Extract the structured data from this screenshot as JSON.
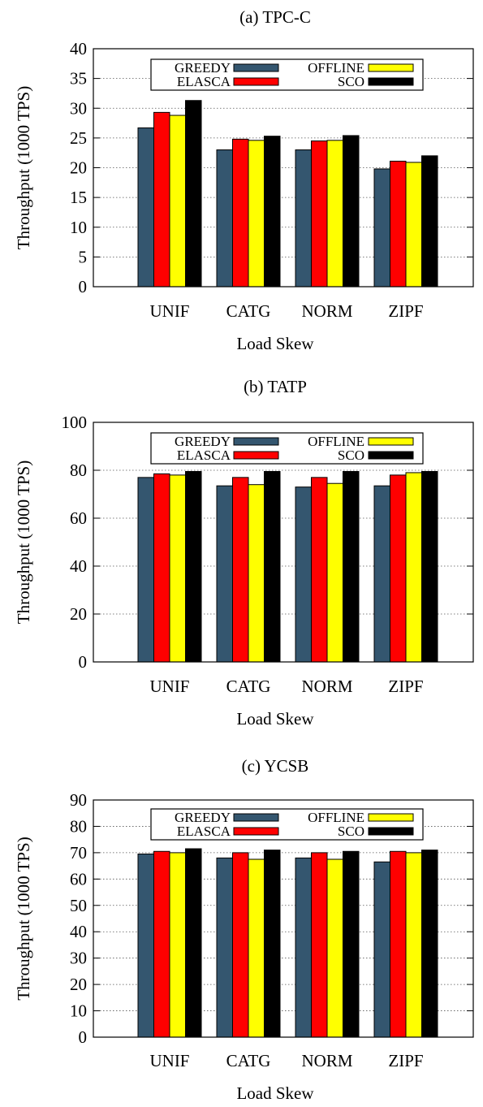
{
  "legend_colors": {
    "GREEDY": "#34566f",
    "ELASCA": "#ff0000",
    "OFFLINE": "#ffff00",
    "SCO": "#000000"
  },
  "chart_data": [
    {
      "type": "bar",
      "title": "(a) TPC-C",
      "xlabel": "Load Skew",
      "ylabel": "Throughput (1000 TPS)",
      "ylim": [
        0,
        40
      ],
      "yticks": [
        0,
        5,
        10,
        15,
        20,
        25,
        30,
        35,
        40
      ],
      "grid": "horizontal dotted",
      "legend_position": "top",
      "categories": [
        "UNIF",
        "CATG",
        "NORM",
        "ZIPF"
      ],
      "series": [
        {
          "name": "GREEDY",
          "values": [
            26.7,
            23.0,
            23.0,
            19.8
          ]
        },
        {
          "name": "ELASCA",
          "values": [
            29.3,
            24.8,
            24.5,
            21.1
          ]
        },
        {
          "name": "OFFLINE",
          "values": [
            28.8,
            24.6,
            24.6,
            20.9
          ]
        },
        {
          "name": "SCO",
          "values": [
            31.3,
            25.3,
            25.4,
            22.0
          ]
        }
      ]
    },
    {
      "type": "bar",
      "title": "(b) TATP",
      "xlabel": "Load Skew",
      "ylabel": "Throughput (1000 TPS)",
      "ylim": [
        0,
        100
      ],
      "yticks": [
        0,
        20,
        40,
        60,
        80,
        100
      ],
      "grid": "horizontal dotted",
      "legend_position": "top",
      "categories": [
        "UNIF",
        "CATG",
        "NORM",
        "ZIPF"
      ],
      "series": [
        {
          "name": "GREEDY",
          "values": [
            77,
            73.5,
            73,
            73.5
          ]
        },
        {
          "name": "ELASCA",
          "values": [
            78.5,
            77,
            77,
            78
          ]
        },
        {
          "name": "OFFLINE",
          "values": [
            78,
            74,
            74.5,
            79
          ]
        },
        {
          "name": "SCO",
          "values": [
            79.5,
            79.5,
            79.5,
            79.5
          ]
        }
      ]
    },
    {
      "type": "bar",
      "title": "(c) YCSB",
      "xlabel": "Load Skew",
      "ylabel": "Throughput (1000 TPS)",
      "ylim": [
        0,
        90
      ],
      "yticks": [
        0,
        10,
        20,
        30,
        40,
        50,
        60,
        70,
        80,
        90
      ],
      "grid": "horizontal dotted",
      "legend_position": "top",
      "categories": [
        "UNIF",
        "CATG",
        "NORM",
        "ZIPF"
      ],
      "series": [
        {
          "name": "GREEDY",
          "values": [
            69.5,
            68,
            68,
            66.5
          ]
        },
        {
          "name": "ELASCA",
          "values": [
            70.5,
            70,
            70,
            70.5
          ]
        },
        {
          "name": "OFFLINE",
          "values": [
            70,
            67.5,
            67.5,
            70
          ]
        },
        {
          "name": "SCO",
          "values": [
            71.5,
            71,
            70.5,
            71
          ]
        }
      ]
    }
  ]
}
